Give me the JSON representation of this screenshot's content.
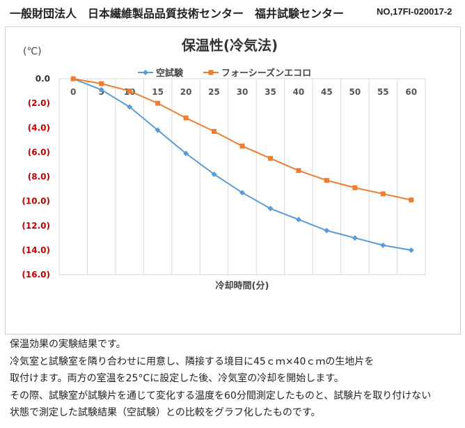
{
  "header": {
    "org": "一般財団法人　日本繊維製品品質技術センター　福井試験センター",
    "doc_no": "NO,17FI-020017-2"
  },
  "chart_data": {
    "type": "line",
    "title": "保温性(冷気法)",
    "ylabel": "(℃)",
    "xlabel": "冷却時間(分)",
    "categories": [
      "0",
      "5",
      "10",
      "15",
      "20",
      "25",
      "30",
      "35",
      "40",
      "45",
      "50",
      "55",
      "60"
    ],
    "ylim": [
      -16,
      0
    ],
    "yticks": [
      "0.0",
      "(2.0)",
      "(4.0)",
      "(6.0)",
      "(8.0)",
      "(10.0)",
      "(12.0)",
      "(14.0)",
      "(16.0)"
    ],
    "grid": "vertical",
    "legend": "top",
    "series": [
      {
        "name": "空試験",
        "color": "#5b9bd5",
        "marker": "diamond",
        "values": [
          0,
          -0.9,
          -2.3,
          -4.2,
          -6.1,
          -7.8,
          -9.3,
          -10.6,
          -11.5,
          -12.4,
          -13.0,
          -13.6,
          -14.0
        ]
      },
      {
        "name": "フォーシーズンエコロ",
        "color": "#ed7d31",
        "marker": "square",
        "values": [
          0,
          -0.4,
          -1.0,
          -2.0,
          -3.2,
          -4.3,
          -5.5,
          -6.5,
          -7.5,
          -8.3,
          -8.9,
          -9.4,
          -9.9
        ]
      }
    ],
    "ytick_color": "#c00000"
  },
  "description": [
    "保温効果の実験結果です。",
    "冷気室と試験室を隣り合わせに用意し、隣接する境目に45ｃｍ×40ｃｍの生地片を",
    "取付けます。両方の室温を25°Cに設定した後、冷気室の冷却を開始します。",
    "その際、試験室が試験片を通じて変化する温度を60分間測定したものと、試験片を取り付けない",
    "状態で測定した試験結果（空試験）との比較をグラフ化したものです。"
  ]
}
